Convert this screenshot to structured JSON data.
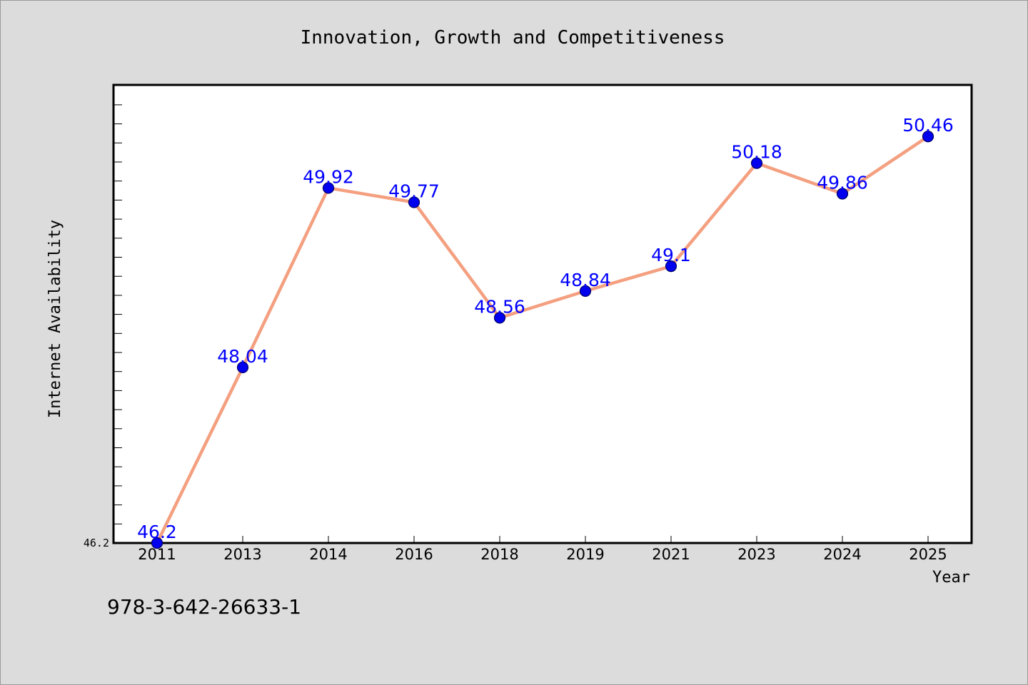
{
  "chart_data": {
    "type": "line",
    "title": "Innovation, Growth and Competitiveness",
    "xlabel": "Year",
    "ylabel": "Internet Availability",
    "categories": [
      "2011",
      "2013",
      "2014",
      "2016",
      "2018",
      "2019",
      "2021",
      "2023",
      "2024",
      "2025"
    ],
    "series": [
      {
        "values": [
          46.2,
          48.04,
          49.92,
          49.77,
          48.56,
          48.84,
          49.1,
          50.18,
          49.86,
          50.46
        ],
        "labels": [
          "46.2",
          "48.04",
          "49.92",
          "49.77",
          "48.56",
          "48.84",
          "49.1",
          "50.18",
          "49.86",
          "50.46"
        ]
      }
    ],
    "ylim": [
      46.2,
      51.0
    ],
    "ytick_labels": [
      "46.2"
    ],
    "grid": false,
    "legend": "none",
    "colors": {
      "line": "#f4a080",
      "marker": "#0000ee",
      "marker_edge": "#000066",
      "data_label": "#0000ff",
      "plot_background": "#ffffff",
      "page_background": "#dcdcdc"
    }
  },
  "footer": {
    "isbn": "978-3-642-26633-1"
  }
}
